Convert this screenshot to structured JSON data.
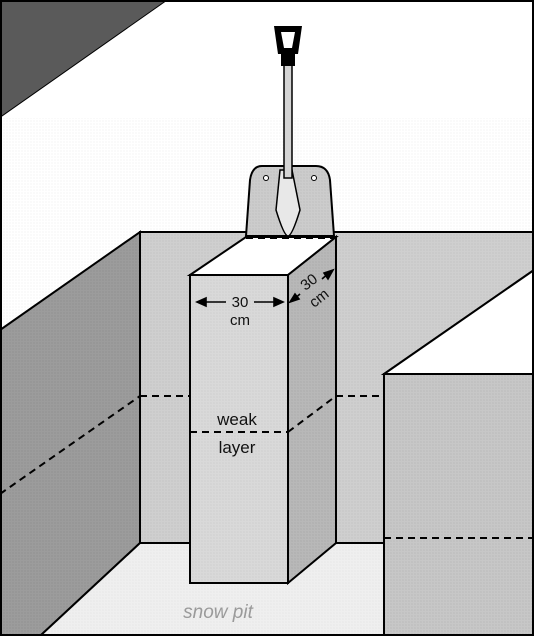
{
  "labels": {
    "front_width_value": "30",
    "front_width_unit": "cm",
    "side_depth_value": "30",
    "side_depth_unit": "cm",
    "weak_line1": "weak",
    "weak_line2": "layer",
    "caption": "snow pit"
  },
  "colors": {
    "outline": "#000000",
    "sky": "#ffffff",
    "dark_slope": "#5a5a5a",
    "top_surface": "#f3f3f3",
    "wall_left": "#9c9c9c",
    "wall_back": "#cfcfcf",
    "column_front": "#d9d9d9",
    "column_side": "#b8b8b8",
    "block_right_front": "#c7c7c7",
    "pit_floor": "#efefef",
    "shovel_blade": "#cccccc",
    "handle": "#000000"
  }
}
